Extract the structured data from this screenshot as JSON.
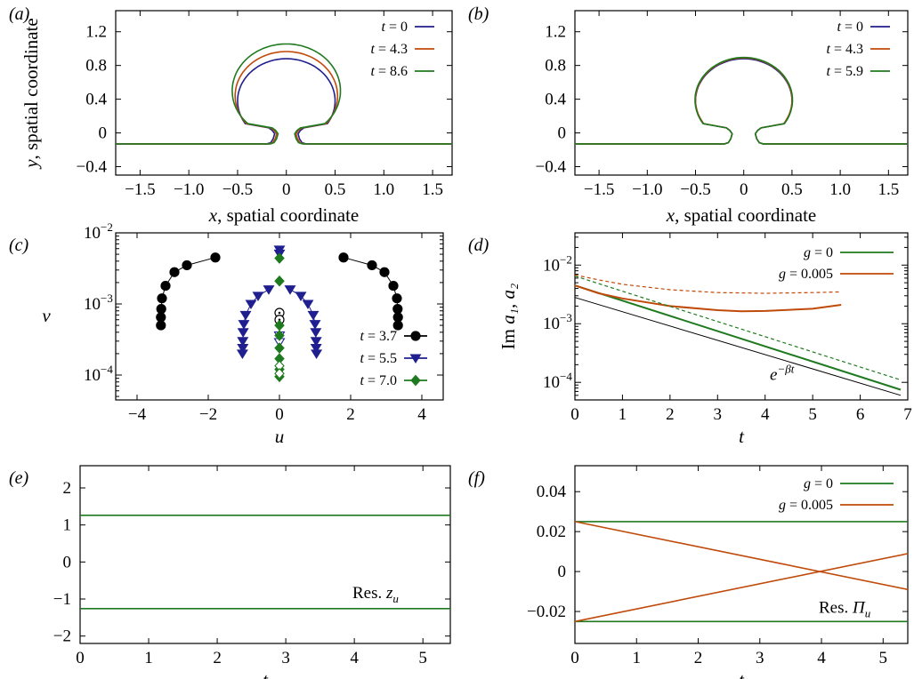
{
  "colors": {
    "blue": "#1f1f8f",
    "orange": "#c04a0a",
    "green": "#1f7a1f",
    "black": "#000000"
  },
  "chart_data": [
    {
      "panel": "(a)",
      "type": "line",
      "xlabel": "x, spatial coordinate",
      "ylabel": "y, spatial coordinate",
      "xlim": [
        -1.75,
        1.7
      ],
      "ylim": [
        -0.5,
        1.45
      ],
      "xticks": [
        -1.5,
        -1.0,
        -0.5,
        0,
        0.5,
        1.0,
        1.5
      ],
      "xtick_labels": [
        "−1.5",
        "−1.0",
        "−0.5",
        "0",
        "0.5",
        "1.0",
        "1.5"
      ],
      "yticks": [
        -0.4,
        0,
        0.4,
        0.8,
        1.2
      ],
      "ytick_labels": [
        "−0.4",
        "0",
        "0.4",
        "0.8",
        "1.2"
      ],
      "legend_position": "top-right",
      "series": [
        {
          "name": "t = 0",
          "color": "blue",
          "shape": {
            "baseline": -0.13,
            "radius": 0.5,
            "center_y": 0.38,
            "neck": 0.13
          }
        },
        {
          "name": "t = 4.3",
          "color": "orange",
          "shape": {
            "baseline": -0.13,
            "radius": 0.525,
            "center_y": 0.44,
            "neck": 0.11
          }
        },
        {
          "name": "t = 8.6",
          "color": "green",
          "shape": {
            "baseline": -0.13,
            "radius": 0.555,
            "center_y": 0.5,
            "neck": 0.095
          }
        }
      ]
    },
    {
      "panel": "(b)",
      "type": "line",
      "xlabel": "x, spatial coordinate",
      "ylabel": "",
      "xlim": [
        -1.75,
        1.7
      ],
      "ylim": [
        -0.5,
        1.45
      ],
      "xticks": [
        -1.5,
        -1.0,
        -0.5,
        0,
        0.5,
        1.0,
        1.5
      ],
      "xtick_labels": [
        "−1.5",
        "−1.0",
        "−0.5",
        "0",
        "0.5",
        "1.0",
        "1.5"
      ],
      "yticks": [
        -0.4,
        0,
        0.4,
        0.8,
        1.2
      ],
      "ytick_labels": [
        "−0.4",
        "0",
        "0.4",
        "0.8",
        "1.2"
      ],
      "legend_position": "top-right",
      "series": [
        {
          "name": "t = 0",
          "color": "blue",
          "shape": {
            "baseline": -0.13,
            "radius": 0.5,
            "center_y": 0.38,
            "neck": 0.13
          }
        },
        {
          "name": "t = 4.3",
          "color": "orange",
          "shape": {
            "baseline": -0.13,
            "radius": 0.5,
            "center_y": 0.39,
            "neck": 0.13
          }
        },
        {
          "name": "t = 5.9",
          "color": "green",
          "shape": {
            "baseline": -0.13,
            "radius": 0.505,
            "center_y": 0.39,
            "neck": 0.13
          }
        }
      ]
    },
    {
      "panel": "(c)",
      "type": "scatter",
      "xlabel": "u",
      "ylabel": "v",
      "xlim": [
        -4.6,
        4.6
      ],
      "ylim_log10": [
        -4.35,
        -2.0
      ],
      "xticks": [
        -4,
        -2,
        0,
        2,
        4
      ],
      "xtick_labels": [
        "−4",
        "−2",
        "0",
        "2",
        "4"
      ],
      "ytick_exponents": [
        -4,
        -3,
        -2
      ],
      "legend_position": "bottom-right",
      "series": [
        {
          "name": "t = 3.7",
          "color": "black",
          "marker": "circle",
          "x": [
            -1.8,
            -2.6,
            -2.95,
            -3.2,
            -3.3,
            -3.32,
            -3.33,
            -3.33
          ],
          "y": [
            0.0045,
            0.0035,
            0.0028,
            0.0018,
            0.0012,
            0.00085,
            0.00065,
            0.0005
          ],
          "open_x": [
            0,
            0
          ],
          "open_y": [
            0.00075,
            0.0006
          ]
        },
        {
          "name": "t = 5.5",
          "color": "blue",
          "marker": "triangle-down",
          "x": [
            -0.3,
            -0.6,
            -0.8,
            -0.95,
            -1.0,
            -1.02,
            -1.03,
            -1.03,
            -1.04,
            0,
            0
          ],
          "y": [
            0.0016,
            0.0013,
            0.001,
            0.0007,
            0.00052,
            0.0004,
            0.0003,
            0.00024,
            0.0002,
            0.0058,
            0.0051
          ],
          "open_x": [
            0,
            0
          ],
          "open_y": [
            0.00036,
            0.00029
          ]
        },
        {
          "name": "t = 7.0",
          "color": "green",
          "marker": "diamond",
          "x": [
            0,
            0,
            0,
            0,
            0,
            0,
            0,
            0
          ],
          "y": [
            0.0044,
            0.0021,
            0.0005,
            0.00036,
            0.00024,
            0.00017,
            0.00012,
            9.5e-05
          ],
          "open_x": [
            0,
            0
          ],
          "open_y": [
            0.000135,
            0.000105
          ]
        }
      ]
    },
    {
      "panel": "(d)",
      "type": "line",
      "xlabel": "t",
      "ylabel": "Im a₁, a₂",
      "xlim": [
        0,
        7
      ],
      "ylim_log10": [
        -4.3,
        -1.45
      ],
      "xticks": [
        0,
        1,
        2,
        3,
        4,
        5,
        6,
        7
      ],
      "xtick_labels": [
        "0",
        "1",
        "2",
        "3",
        "4",
        "5",
        "6",
        "7"
      ],
      "ytick_exponents": [
        -4,
        -3,
        -2
      ],
      "legend_position": "top-right",
      "annotation": "e^{−βt}",
      "series": [
        {
          "name": "g = 0",
          "color": "green",
          "x": [
            0,
            6.85
          ],
          "y": [
            0.0045,
            7.5e-05
          ]
        },
        {
          "name": "g = 0.005",
          "color": "orange",
          "x": [
            0,
            0.5,
            1,
            2,
            3,
            3.5,
            4,
            5,
            5.6
          ],
          "y": [
            0.0045,
            0.0033,
            0.0027,
            0.002,
            0.0017,
            0.00163,
            0.00165,
            0.0018,
            0.0021
          ]
        },
        {
          "name": "",
          "color": "green",
          "dashed": true,
          "x": [
            0,
            6.85
          ],
          "y": [
            0.0065,
            0.00011
          ]
        },
        {
          "name": "",
          "color": "orange",
          "dashed": true,
          "x": [
            0,
            0.5,
            1,
            2,
            3,
            4,
            5,
            5.6
          ],
          "y": [
            0.0068,
            0.0056,
            0.0047,
            0.0038,
            0.0034,
            0.0033,
            0.0034,
            0.0035
          ]
        },
        {
          "name": "",
          "color": "black",
          "x": [
            0,
            6.85
          ],
          "y": [
            0.0028,
            6e-05
          ]
        }
      ]
    },
    {
      "panel": "(e)",
      "type": "line",
      "xlabel": "t",
      "ylabel": "",
      "xlim": [
        0,
        5.4
      ],
      "ylim": [
        -2.2,
        2.6
      ],
      "xticks": [
        0,
        1,
        2,
        3,
        4,
        5
      ],
      "xtick_labels": [
        "0",
        "1",
        "2",
        "3",
        "4",
        "5"
      ],
      "yticks": [
        -2,
        -1,
        0,
        1,
        2
      ],
      "ytick_labels": [
        "−2",
        "−1",
        "0",
        "1",
        "2"
      ],
      "annotation": "Res. z_u",
      "series": [
        {
          "name": "",
          "color": "green",
          "x": [
            0,
            5.4
          ],
          "y": [
            1.26,
            1.26
          ]
        },
        {
          "name": "",
          "color": "green",
          "x": [
            0,
            5.4
          ],
          "y": [
            -1.26,
            -1.26
          ]
        }
      ]
    },
    {
      "panel": "(f)",
      "type": "line",
      "xlabel": "t",
      "ylabel": "",
      "xlim": [
        0,
        5.4
      ],
      "ylim": [
        -0.036,
        0.053
      ],
      "xticks": [
        0,
        1,
        2,
        3,
        4,
        5
      ],
      "xtick_labels": [
        "0",
        "1",
        "2",
        "3",
        "4",
        "5"
      ],
      "yticks": [
        -0.02,
        0,
        0.02,
        0.04
      ],
      "ytick_labels": [
        "−0.02",
        "0",
        "0.02",
        "0.04"
      ],
      "legend_position": "top-right",
      "annotation": "Res. Π_u",
      "series": [
        {
          "name": "g = 0",
          "color": "green",
          "x": [
            0,
            5.4
          ],
          "y": [
            0.025,
            0.025
          ]
        },
        {
          "name": "",
          "color": "green",
          "x": [
            0,
            5.4
          ],
          "y": [
            -0.025,
            -0.025
          ]
        },
        {
          "name": "g = 0.005",
          "color": "orange",
          "x": [
            0,
            5.4
          ],
          "y": [
            0.025,
            -0.009
          ]
        },
        {
          "name": "",
          "color": "orange",
          "x": [
            0,
            5.4
          ],
          "y": [
            -0.025,
            0.009
          ]
        }
      ]
    }
  ]
}
